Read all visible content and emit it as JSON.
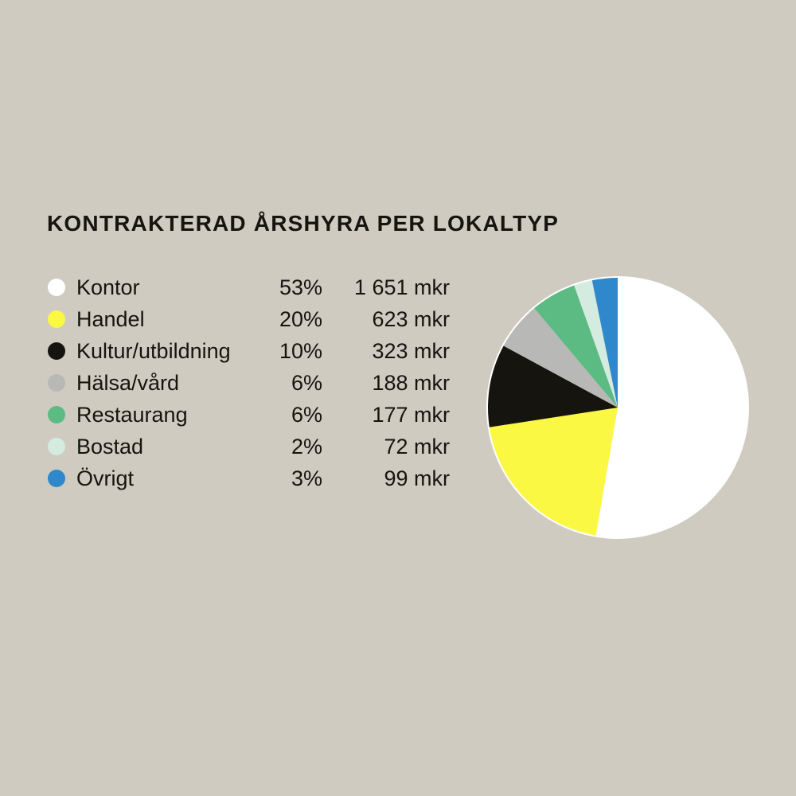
{
  "title": "KONTRAKTERAD ÅRSHYRA PER LOKALTYP",
  "legend": [
    {
      "label": "Kontor",
      "pct": "53%",
      "value": "1 651 mkr",
      "color": "#ffffff"
    },
    {
      "label": "Handel",
      "pct": "20%",
      "value": "623 mkr",
      "color": "#fbf844"
    },
    {
      "label": "Kultur/utbildning",
      "pct": "10%",
      "value": "323 mkr",
      "color": "#15140f"
    },
    {
      "label": "Hälsa/vård",
      "pct": "6%",
      "value": "188 mkr",
      "color": "#b8b9b7"
    },
    {
      "label": "Restaurang",
      "pct": "6%",
      "value": "177 mkr",
      "color": "#5cbb83"
    },
    {
      "label": "Bostad",
      "pct": "2%",
      "value": "72 mkr",
      "color": "#d4ebdf"
    },
    {
      "label": "Övrigt",
      "pct": "3%",
      "value": "99 mkr",
      "color": "#2e88cb"
    }
  ],
  "chart_data": {
    "type": "pie",
    "title": "KONTRAKTERAD ÅRSHYRA PER LOKALTYP",
    "unit": "mkr",
    "categories": [
      "Kontor",
      "Handel",
      "Kultur/utbildning",
      "Hälsa/vård",
      "Restaurang",
      "Bostad",
      "Övrigt"
    ],
    "values": [
      1651,
      623,
      323,
      188,
      177,
      72,
      99
    ],
    "percentages": [
      53,
      20,
      10,
      6,
      6,
      2,
      3
    ],
    "colors": [
      "#ffffff",
      "#fbf844",
      "#15140f",
      "#b8b9b7",
      "#5cbb83",
      "#d4ebdf",
      "#2e88cb"
    ],
    "start_angle": "12 o'clock",
    "direction": "clockwise",
    "legend_position": "left"
  }
}
